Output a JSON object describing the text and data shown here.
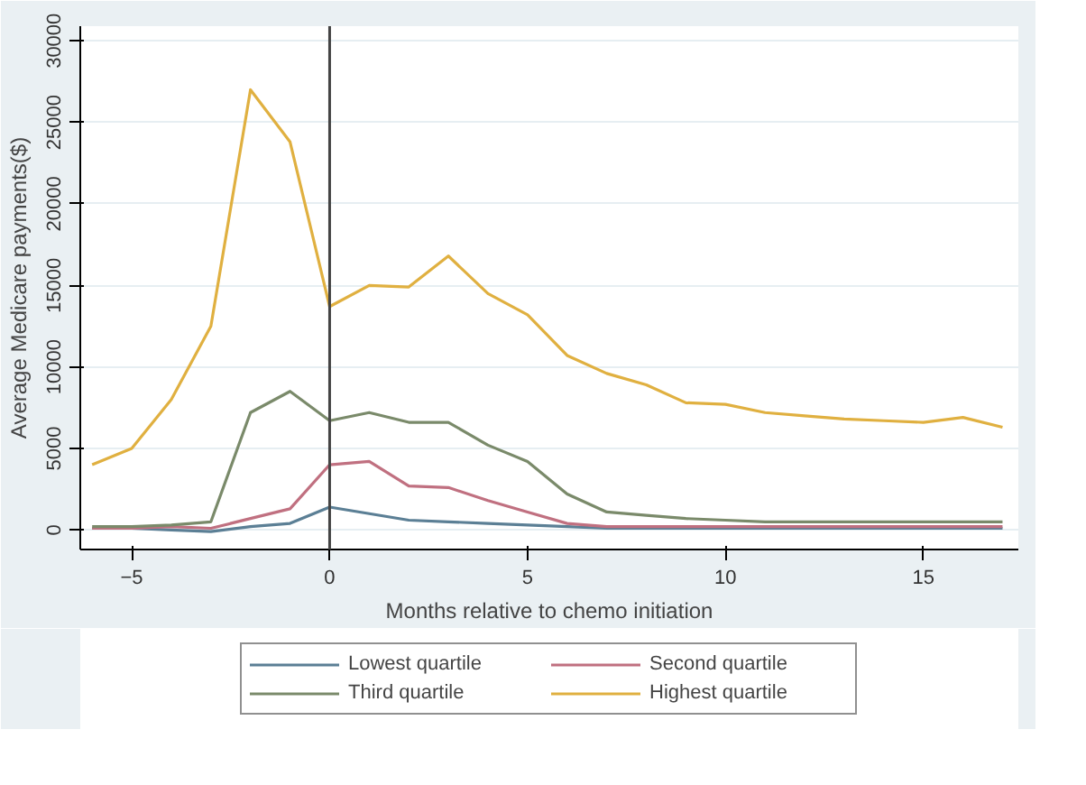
{
  "chart_data": {
    "type": "line",
    "xlabel": "Months relative to chemo initiation",
    "ylabel": "Average Medicare payments($)",
    "x": [
      -6,
      -5,
      -4,
      -3,
      -2,
      -1,
      0,
      1,
      2,
      3,
      4,
      5,
      6,
      7,
      8,
      9,
      10,
      11,
      12,
      13,
      14,
      15,
      16,
      17
    ],
    "series": [
      {
        "name": "Lowest quartile",
        "color": "#5b7f95",
        "values": [
          100,
          100,
          0,
          -100,
          200,
          400,
          1400,
          1000,
          600,
          500,
          400,
          300,
          200,
          100,
          100,
          100,
          100,
          100,
          100,
          100,
          100,
          100,
          100,
          100
        ]
      },
      {
        "name": "Second quartile",
        "color": "#c07080",
        "values": [
          100,
          100,
          200,
          100,
          700,
          1300,
          4000,
          4200,
          2700,
          2600,
          1800,
          1100,
          400,
          200,
          200,
          200,
          200,
          200,
          200,
          200,
          200,
          200,
          200,
          200
        ]
      },
      {
        "name": "Third quartile",
        "color": "#7a8a6a",
        "values": [
          200,
          200,
          300,
          500,
          7200,
          8500,
          6700,
          7200,
          6600,
          6600,
          5200,
          4200,
          2200,
          1100,
          900,
          700,
          600,
          500,
          500,
          500,
          500,
          500,
          500,
          500
        ]
      },
      {
        "name": "Highest quartile",
        "color": "#e0b040",
        "values": [
          4000,
          5000,
          8000,
          12500,
          27000,
          23800,
          13700,
          15000,
          14900,
          16800,
          14500,
          13200,
          10700,
          9600,
          8900,
          7800,
          7700,
          7200,
          7000,
          6800,
          6700,
          6600,
          6900,
          6300
        ]
      }
    ],
    "xlim": [
      -6.3,
      17.4
    ],
    "ylim": [
      -1200,
      30900
    ],
    "xticks": [
      -5,
      0,
      5,
      10,
      15
    ],
    "yticks": [
      0,
      5000,
      10000,
      15000,
      20000,
      25000,
      30000
    ],
    "ref_lines": [
      {
        "axis": "x",
        "value": 0,
        "color": "#444444"
      }
    ],
    "grid": "y",
    "legend": "bottom",
    "line_style": "solid",
    "marker": "none"
  }
}
